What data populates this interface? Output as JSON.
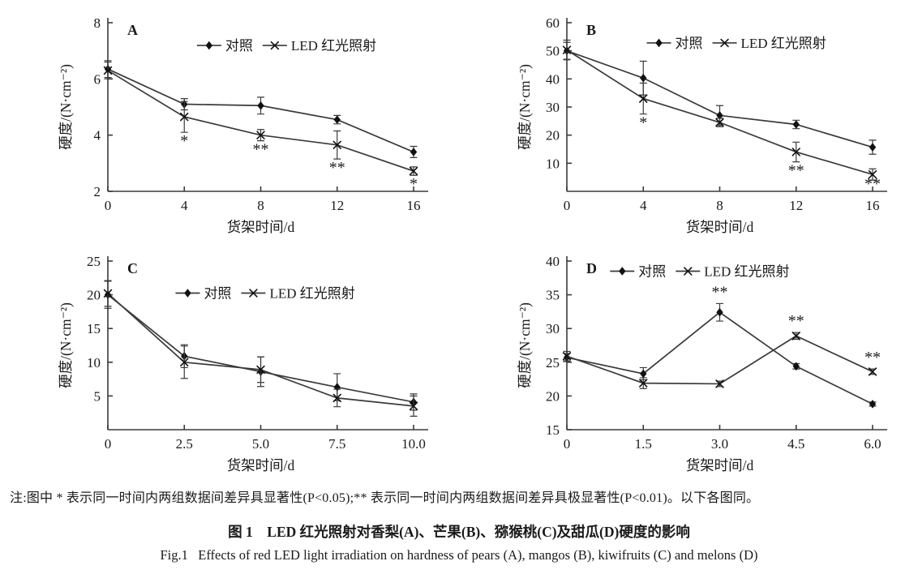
{
  "figure": {
    "note": "注:图中 * 表示同一时间内两组数据间差异具显著性(P<0.05);** 表示同一时间内两组数据间差异具极显著性(P<0.01)。以下各图同。",
    "caption_zh": "图 1　LED 红光照射对香梨(A)、芒果(B)、猕猴桃(C)及甜瓜(D)硬度的影响",
    "caption_en": "Fig.1   Effects of red LED light irradiation on hardness of pears (A), mangos (B), kiwifruits (C) and melons (D)"
  },
  "colors": {
    "line": "#3a3a3a",
    "marker": "#111111",
    "text": "#1a1a1a"
  },
  "chart_data": [
    {
      "type": "line",
      "panel_label": "A",
      "xlabel": "货架时间/d",
      "ylabel": "硬度/(N·cm⁻²)",
      "x": [
        0,
        4,
        8,
        12,
        16
      ],
      "xticklabels": [
        "0",
        "4",
        "8",
        "12",
        "16"
      ],
      "xlim": [
        0,
        16
      ],
      "ylim": [
        2,
        8
      ],
      "yticks": [
        2,
        4,
        6,
        8
      ],
      "legend_pos": {
        "x": 0.58,
        "y": 0.135
      },
      "series": [
        {
          "name": "对照",
          "marker": "diamond",
          "values": [
            6.35,
            5.1,
            5.05,
            4.55,
            3.4
          ],
          "errors": [
            0.3,
            0.2,
            0.3,
            0.15,
            0.2
          ]
        },
        {
          "name": "LED 红光照射",
          "marker": "x",
          "values": [
            6.3,
            4.65,
            4.0,
            3.65,
            2.72
          ],
          "errors": [
            0.3,
            0.55,
            0.2,
            0.5,
            0.15
          ]
        }
      ],
      "significance": [
        {
          "x": 4,
          "series": 1,
          "label": "*",
          "position": "below"
        },
        {
          "x": 8,
          "series": 1,
          "label": "**",
          "position": "below"
        },
        {
          "x": 12,
          "series": 1,
          "label": "**",
          "position": "below"
        },
        {
          "x": 16,
          "series": 1,
          "label": "*",
          "position": "below"
        }
      ]
    },
    {
      "type": "line",
      "panel_label": "B",
      "xlabel": "货架时间/d",
      "ylabel": "硬度/(N·cm⁻²)",
      "x": [
        0,
        4,
        8,
        12,
        16
      ],
      "xticklabels": [
        "0",
        "4",
        "8",
        "12",
        "16"
      ],
      "xlim": [
        0,
        16
      ],
      "ylim": [
        0,
        60
      ],
      "yticks": [
        10,
        20,
        30,
        40,
        50,
        60
      ],
      "legend_pos": {
        "x": 0.55,
        "y": 0.12
      },
      "series": [
        {
          "name": "对照",
          "marker": "diamond",
          "values": [
            50.0,
            40.3,
            27.0,
            23.8,
            15.7
          ],
          "errors": [
            3.0,
            6.0,
            3.5,
            1.5,
            2.5
          ]
        },
        {
          "name": "LED 红光照射",
          "marker": "x",
          "values": [
            50.3,
            33.0,
            24.5,
            14.0,
            6.0
          ],
          "errors": [
            3.5,
            5.5,
            1.5,
            3.5,
            2.0
          ]
        }
      ],
      "significance": [
        {
          "x": 4,
          "series": 1,
          "label": "*",
          "position": "below"
        },
        {
          "x": 12,
          "series": 1,
          "label": "**",
          "position": "below"
        },
        {
          "x": 16,
          "series": 1,
          "label": "**",
          "position": "below"
        }
      ]
    },
    {
      "type": "line",
      "panel_label": "C",
      "xlabel": "货架时间/d",
      "ylabel": "硬度/(N·cm⁻²)",
      "x": [
        0,
        2.5,
        5,
        7.5,
        10
      ],
      "xticklabels": [
        "0",
        "2.5",
        "5.0",
        "7.5",
        "10.0"
      ],
      "xlim": [
        0,
        10
      ],
      "ylim": [
        0,
        25
      ],
      "yticks": [
        5,
        10,
        15,
        20,
        25
      ],
      "legend_pos": {
        "x": 0.51,
        "y": 0.19
      },
      "series": [
        {
          "name": "对照",
          "marker": "diamond",
          "values": [
            20.0,
            10.9,
            8.6,
            6.3,
            4.1
          ],
          "errors": [
            2.0,
            1.7,
            2.2,
            2.0,
            1.2
          ]
        },
        {
          "name": "LED 红光照射",
          "marker": "x",
          "values": [
            20.2,
            10.0,
            8.9,
            4.7,
            3.5
          ],
          "errors": [
            1.9,
            2.4,
            1.9,
            1.3,
            1.5
          ]
        }
      ],
      "significance": []
    },
    {
      "type": "line",
      "panel_label": "D",
      "xlabel": "货架时间/d",
      "ylabel": "硬度/(N·cm⁻²)",
      "x": [
        0,
        1.5,
        3,
        4.5,
        6
      ],
      "xticklabels": [
        "0",
        "1.5",
        "3.0",
        "4.5",
        "6.0"
      ],
      "xlim": [
        0,
        6
      ],
      "ylim": [
        15,
        40
      ],
      "yticks": [
        15,
        20,
        25,
        30,
        35,
        40
      ],
      "legend_pos": {
        "x": 0.43,
        "y": 0.06
      },
      "series": [
        {
          "name": "对照",
          "marker": "diamond",
          "values": [
            25.7,
            23.3,
            32.4,
            24.4,
            18.8
          ],
          "errors": [
            0.6,
            0.9,
            1.3,
            0.4,
            0.3
          ]
        },
        {
          "name": "LED 红光照射",
          "marker": "x",
          "values": [
            25.9,
            21.9,
            21.8,
            28.9,
            23.6
          ],
          "errors": [
            0.7,
            0.8,
            0.4,
            0.5,
            0.4
          ]
        }
      ],
      "significance": [
        {
          "x": 3,
          "series": 0,
          "label": "**",
          "position": "above"
        },
        {
          "x": 4.5,
          "series": 1,
          "label": "**",
          "position": "above"
        },
        {
          "x": 6,
          "series": 1,
          "label": "**",
          "position": "above"
        }
      ]
    }
  ]
}
